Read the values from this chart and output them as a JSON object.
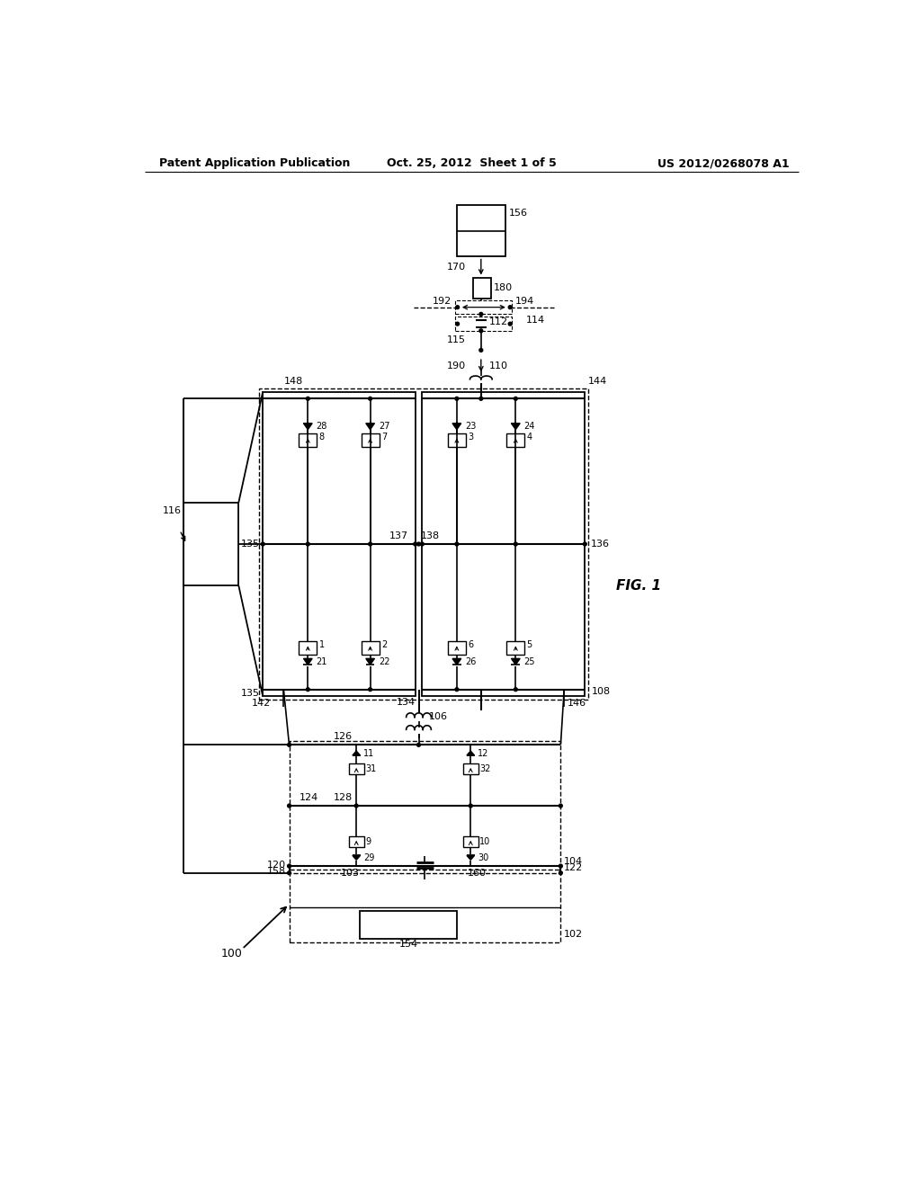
{
  "bg_color": "#ffffff",
  "line_color": "#000000",
  "header_left": "Patent Application Publication",
  "header_center": "Oct. 25, 2012  Sheet 1 of 5",
  "header_right": "US 2012/0268078 A1",
  "fig_label": "FIG. 1",
  "label_fontsize": 8
}
